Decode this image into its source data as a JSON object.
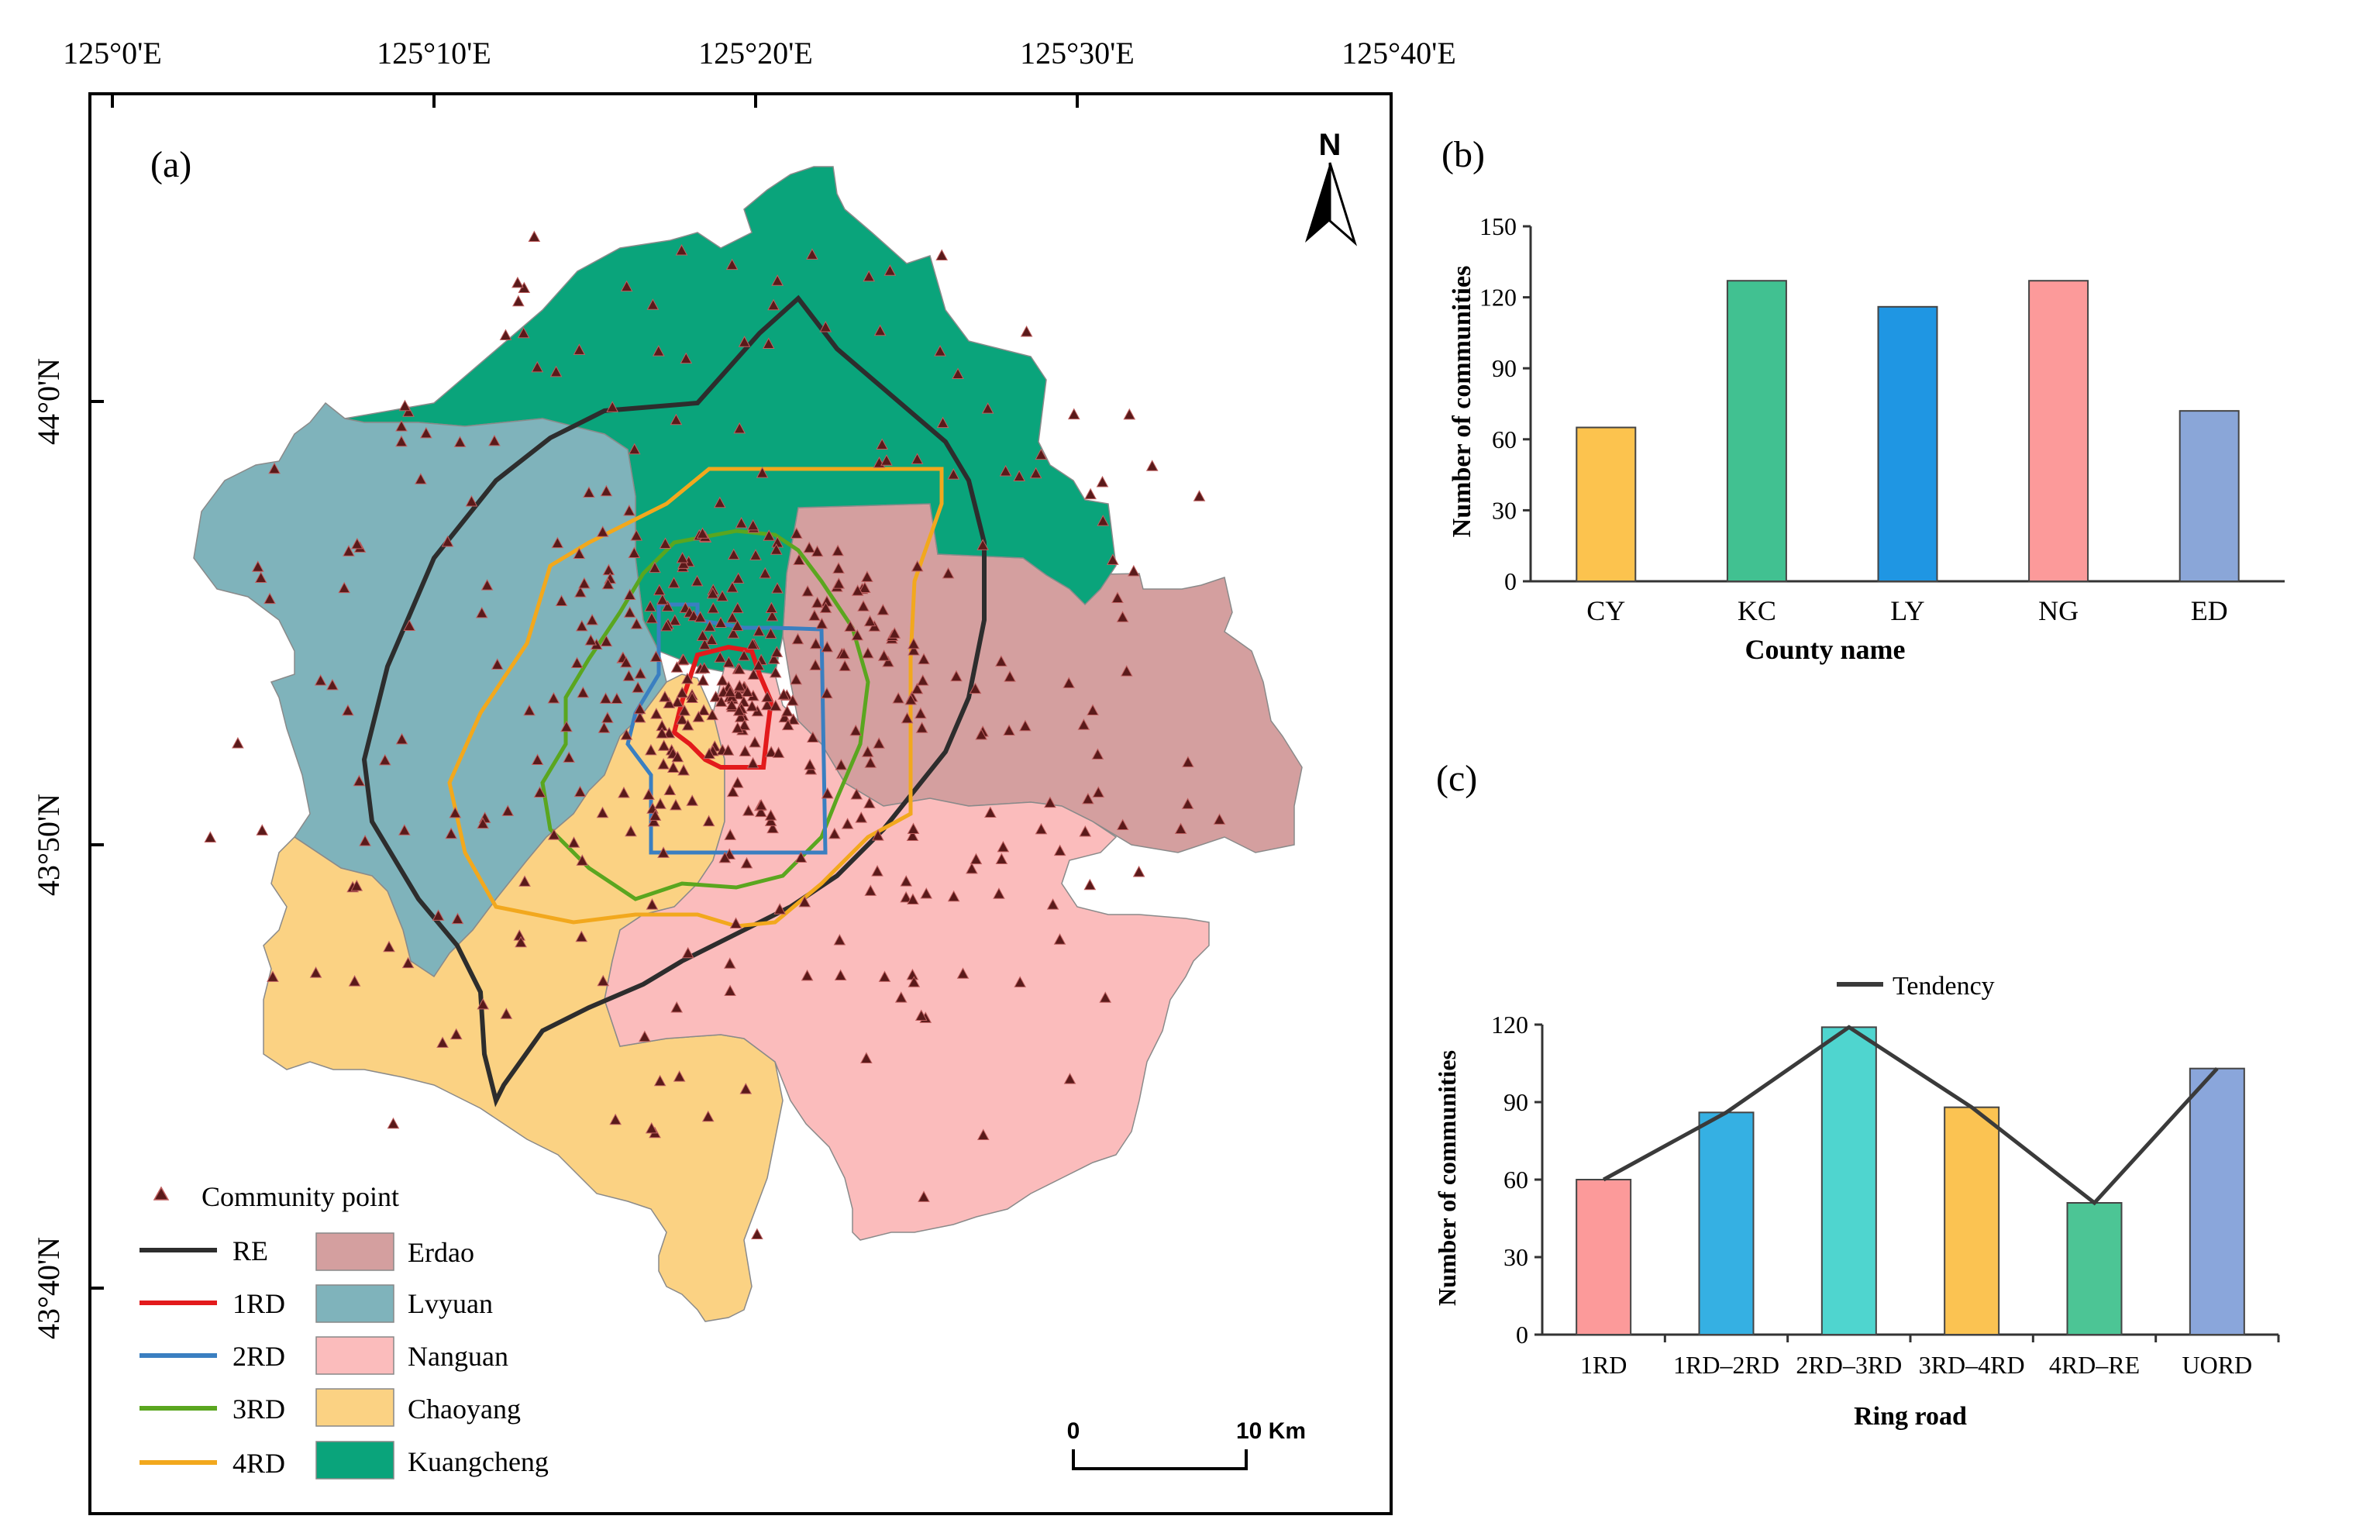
{
  "map": {
    "panel_label": "(a)",
    "north_label": "N",
    "lon_ticks": [
      "125°0'E",
      "125°10'E",
      "125°20'E",
      "125°30'E",
      "125°40'E"
    ],
    "lat_ticks": [
      "44°0'N",
      "43°50'N",
      "43°40'N"
    ],
    "scale": {
      "start": "0",
      "end": "10 Km"
    },
    "legend": {
      "point_label": "Community point",
      "roads": [
        {
          "label": "RE",
          "color": "#2d2d2d"
        },
        {
          "label": "1RD",
          "color": "#e31a1c"
        },
        {
          "label": "2RD",
          "color": "#3a7fc1"
        },
        {
          "label": "3RD",
          "color": "#5aa61f"
        },
        {
          "label": "4RD",
          "color": "#f2a81d"
        }
      ],
      "districts": [
        {
          "label": "Erdao",
          "color": "#d49f9f"
        },
        {
          "label": "Lvyuan",
          "color": "#7fb3bb"
        },
        {
          "label": "Nanguan",
          "color": "#fbbcbc"
        },
        {
          "label": "Chaoyang",
          "color": "#fbd283"
        },
        {
          "label": "Kuangcheng",
          "color": "#0aa47b"
        }
      ]
    }
  },
  "chart_data": [
    {
      "type": "bar",
      "panel_label": "(b)",
      "categories": [
        "CY",
        "KC",
        "LY",
        "NG",
        "ED"
      ],
      "values": [
        65,
        127,
        116,
        127,
        72
      ],
      "colors": [
        "#fcc34e",
        "#41c191",
        "#1f96e3",
        "#fc9a9a",
        "#8aa6d8"
      ],
      "xlabel": "County name",
      "ylabel": "Number of communities",
      "ylim": [
        0,
        150
      ],
      "yticks": [
        "0",
        "30",
        "60",
        "90",
        "120",
        "150"
      ]
    },
    {
      "type": "bar",
      "panel_label": "(c)",
      "categories": [
        "1RD",
        "1RD–2RD",
        "2RD–3RD",
        "3RD–4RD",
        "4RD–RE",
        "UORD"
      ],
      "values": [
        60,
        86,
        119,
        88,
        51,
        103
      ],
      "colors": [
        "#fc9a9a",
        "#35b0e3",
        "#4fd5cf",
        "#fbc352",
        "#4cc595",
        "#8aa6db"
      ],
      "series_line": {
        "name": "Tendency",
        "values": [
          60,
          86,
          119,
          88,
          51,
          103
        ],
        "color": "#3a3a3a"
      },
      "legend": "Tendency",
      "xlabel": "Ring road",
      "ylabel": "Number of communities",
      "ylim": [
        0,
        120
      ],
      "yticks": [
        "0",
        "30",
        "60",
        "90",
        "120"
      ]
    }
  ]
}
